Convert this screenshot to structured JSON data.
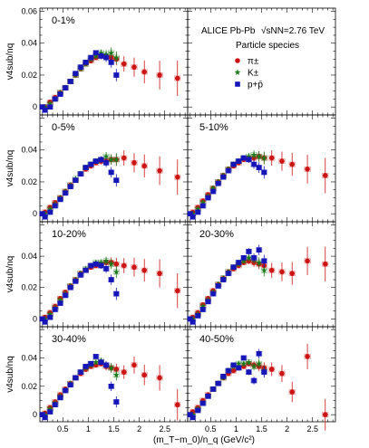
{
  "chart_data": {
    "type": "scatter",
    "layout": "4 rows x 2 columns of panels with shared axes",
    "x_axis": {
      "label": "(m_T−m_0)/n_q (GeV/c²)",
      "range": [
        0.05,
        2.95
      ],
      "ticks": [
        0.5,
        1,
        1.5,
        2,
        2.5
      ],
      "tick_labels": [
        "0.5",
        "1",
        "1.5",
        "2",
        "2.5"
      ]
    },
    "y_axis": {
      "label": "v4sub/nq",
      "range": [
        -0.005,
        0.062
      ],
      "ticks": [
        0,
        0.02,
        0.04,
        0.06
      ],
      "tick_labels": [
        "0",
        "0.02",
        "0.04",
        "0.06"
      ]
    },
    "info": {
      "experiment": "ALICE Pb-Pb",
      "energy": "√sNN=2.76 TeV",
      "legend_title": "Particle species",
      "legend_placement": "top-right panel"
    },
    "species": [
      {
        "key": "pion",
        "label": "π±",
        "marker": "circle",
        "color": "#cc1414"
      },
      {
        "key": "kaon",
        "label": "K±",
        "marker": "star",
        "color": "#1a7a1a"
      },
      {
        "key": "proton",
        "label": "p+p̄",
        "marker": "square",
        "color": "#1515b8"
      }
    ],
    "panels": [
      {
        "centrality": "0-1%",
        "pion": {
          "x": [
            0.15,
            0.25,
            0.35,
            0.45,
            0.55,
            0.65,
            0.75,
            0.85,
            0.95,
            1.05,
            1.15,
            1.25,
            1.35,
            1.45,
            1.55,
            1.7,
            1.9,
            2.1,
            2.4,
            2.75
          ],
          "y": [
            0.0,
            0.003,
            0.006,
            0.009,
            0.012,
            0.016,
            0.02,
            0.024,
            0.027,
            0.029,
            0.031,
            0.032,
            0.032,
            0.031,
            0.03,
            0.027,
            0.025,
            0.022,
            0.02,
            0.018
          ]
        },
        "kaon": {
          "x": [
            0.15,
            0.25,
            0.35,
            0.45,
            0.55,
            0.65,
            0.75,
            0.85,
            0.95,
            1.05,
            1.15,
            1.25,
            1.35,
            1.45,
            1.55
          ],
          "y": [
            0.0,
            0.002,
            0.005,
            0.009,
            0.012,
            0.016,
            0.02,
            0.024,
            0.027,
            0.03,
            0.032,
            0.034,
            0.033,
            0.034,
            0.031
          ]
        },
        "proton": {
          "x": [
            0.1,
            0.15,
            0.25,
            0.35,
            0.45,
            0.55,
            0.65,
            0.75,
            0.85,
            0.95,
            1.05,
            1.15,
            1.25,
            1.35,
            1.45,
            1.55
          ],
          "y": [
            0.0,
            -0.002,
            0.0,
            0.005,
            0.008,
            0.012,
            0.016,
            0.021,
            0.025,
            0.028,
            0.031,
            0.034,
            0.032,
            0.031,
            0.028,
            0.02
          ]
        }
      },
      {
        "centrality": "0-5%",
        "pion": {
          "x": [
            0.15,
            0.25,
            0.35,
            0.45,
            0.55,
            0.65,
            0.75,
            0.85,
            0.95,
            1.05,
            1.15,
            1.25,
            1.35,
            1.45,
            1.55,
            1.7,
            1.9,
            2.1,
            2.4,
            2.75
          ],
          "y": [
            0.001,
            0.004,
            0.007,
            0.01,
            0.014,
            0.018,
            0.021,
            0.025,
            0.028,
            0.03,
            0.032,
            0.033,
            0.033,
            0.034,
            0.034,
            0.035,
            0.032,
            0.03,
            0.027,
            0.023
          ]
        },
        "kaon": {
          "x": [
            0.15,
            0.25,
            0.35,
            0.45,
            0.55,
            0.65,
            0.75,
            0.85,
            0.95,
            1.05,
            1.15,
            1.25,
            1.35,
            1.45,
            1.55
          ],
          "y": [
            0.0,
            0.003,
            0.006,
            0.01,
            0.014,
            0.018,
            0.022,
            0.025,
            0.029,
            0.031,
            0.033,
            0.034,
            0.036,
            0.034,
            0.034
          ]
        },
        "proton": {
          "x": [
            0.1,
            0.15,
            0.25,
            0.35,
            0.45,
            0.55,
            0.65,
            0.75,
            0.85,
            0.95,
            1.05,
            1.15,
            1.25,
            1.35,
            1.45,
            1.55
          ],
          "y": [
            0.0,
            -0.002,
            0.001,
            0.005,
            0.009,
            0.013,
            0.017,
            0.021,
            0.025,
            0.029,
            0.031,
            0.033,
            0.034,
            0.032,
            0.026,
            0.021
          ]
        }
      },
      {
        "centrality": "5-10%",
        "pion": {
          "x": [
            0.15,
            0.25,
            0.35,
            0.45,
            0.55,
            0.65,
            0.75,
            0.85,
            0.95,
            1.05,
            1.15,
            1.25,
            1.35,
            1.45,
            1.55,
            1.7,
            1.9,
            2.1,
            2.4,
            2.75
          ],
          "y": [
            0.001,
            0.004,
            0.008,
            0.012,
            0.016,
            0.02,
            0.024,
            0.028,
            0.03,
            0.032,
            0.034,
            0.035,
            0.035,
            0.036,
            0.035,
            0.035,
            0.033,
            0.031,
            0.028,
            0.024
          ]
        },
        "kaon": {
          "x": [
            0.15,
            0.25,
            0.35,
            0.45,
            0.55,
            0.65,
            0.75,
            0.85,
            0.95,
            1.05,
            1.15,
            1.25,
            1.35,
            1.45,
            1.55
          ],
          "y": [
            0.0,
            0.003,
            0.007,
            0.011,
            0.016,
            0.02,
            0.024,
            0.028,
            0.031,
            0.033,
            0.035,
            0.036,
            0.037,
            0.036,
            0.035
          ]
        },
        "proton": {
          "x": [
            0.1,
            0.15,
            0.25,
            0.35,
            0.45,
            0.55,
            0.65,
            0.75,
            0.85,
            0.95,
            1.05,
            1.15,
            1.25,
            1.35,
            1.45,
            1.55
          ],
          "y": [
            0.0,
            -0.002,
            0.001,
            0.005,
            0.01,
            0.014,
            0.019,
            0.023,
            0.027,
            0.031,
            0.033,
            0.035,
            0.034,
            0.031,
            0.029,
            0.026
          ]
        }
      },
      {
        "centrality": "10-20%",
        "pion": {
          "x": [
            0.15,
            0.25,
            0.35,
            0.45,
            0.55,
            0.65,
            0.75,
            0.85,
            0.95,
            1.05,
            1.15,
            1.25,
            1.35,
            1.45,
            1.55,
            1.7,
            1.9,
            2.1,
            2.4,
            2.75
          ],
          "y": [
            0.001,
            0.004,
            0.008,
            0.013,
            0.017,
            0.021,
            0.025,
            0.029,
            0.031,
            0.033,
            0.034,
            0.035,
            0.036,
            0.036,
            0.035,
            0.034,
            0.033,
            0.031,
            0.029,
            0.018
          ]
        },
        "kaon": {
          "x": [
            0.15,
            0.25,
            0.35,
            0.45,
            0.55,
            0.65,
            0.75,
            0.85,
            0.95,
            1.05,
            1.15,
            1.25,
            1.35,
            1.45,
            1.55
          ],
          "y": [
            0.0,
            0.003,
            0.007,
            0.012,
            0.016,
            0.021,
            0.025,
            0.029,
            0.032,
            0.034,
            0.036,
            0.036,
            0.037,
            0.035,
            0.03
          ]
        },
        "proton": {
          "x": [
            0.1,
            0.15,
            0.25,
            0.35,
            0.45,
            0.55,
            0.65,
            0.75,
            0.85,
            0.95,
            1.05,
            1.15,
            1.25,
            1.35,
            1.45,
            1.55
          ],
          "y": [
            0.0,
            -0.002,
            0.001,
            0.006,
            0.01,
            0.015,
            0.02,
            0.024,
            0.028,
            0.031,
            0.034,
            0.035,
            0.034,
            0.032,
            0.025,
            0.016
          ]
        }
      },
      {
        "centrality": "20-30%",
        "pion": {
          "x": [
            0.15,
            0.25,
            0.35,
            0.45,
            0.55,
            0.65,
            0.75,
            0.85,
            0.95,
            1.05,
            1.15,
            1.25,
            1.35,
            1.45,
            1.55,
            1.7,
            1.9,
            2.1,
            2.4,
            2.75
          ],
          "y": [
            0.001,
            0.004,
            0.009,
            0.013,
            0.018,
            0.022,
            0.026,
            0.03,
            0.032,
            0.034,
            0.036,
            0.037,
            0.036,
            0.035,
            0.034,
            0.031,
            0.03,
            0.029,
            0.037,
            0.035
          ]
        },
        "kaon": {
          "x": [
            0.15,
            0.25,
            0.35,
            0.45,
            0.55,
            0.65,
            0.75,
            0.85,
            0.95,
            1.05,
            1.15,
            1.25,
            1.35,
            1.45,
            1.55
          ],
          "y": [
            0.0,
            0.003,
            0.008,
            0.012,
            0.017,
            0.022,
            0.026,
            0.03,
            0.033,
            0.035,
            0.037,
            0.039,
            0.038,
            0.036,
            0.031
          ]
        },
        "proton": {
          "x": [
            0.1,
            0.15,
            0.25,
            0.35,
            0.45,
            0.55,
            0.65,
            0.75,
            0.85,
            0.95,
            1.05,
            1.15,
            1.25,
            1.35,
            1.45,
            1.55
          ],
          "y": [
            0.0,
            -0.002,
            0.002,
            0.006,
            0.011,
            0.016,
            0.021,
            0.025,
            0.029,
            0.033,
            0.036,
            0.039,
            0.043,
            0.039,
            0.044,
            0.037
          ]
        }
      },
      {
        "centrality": "30-40%",
        "pion": {
          "x": [
            0.15,
            0.25,
            0.35,
            0.45,
            0.55,
            0.65,
            0.75,
            0.85,
            0.95,
            1.05,
            1.15,
            1.25,
            1.35,
            1.45,
            1.55,
            1.7,
            1.9,
            2.1,
            2.4,
            2.75
          ],
          "y": [
            0.001,
            0.005,
            0.009,
            0.014,
            0.018,
            0.022,
            0.026,
            0.029,
            0.032,
            0.034,
            0.035,
            0.036,
            0.034,
            0.033,
            0.032,
            0.03,
            0.035,
            0.028,
            0.026,
            0.007
          ]
        },
        "kaon": {
          "x": [
            0.15,
            0.25,
            0.35,
            0.45,
            0.55,
            0.65,
            0.75,
            0.85,
            0.95,
            1.05,
            1.15,
            1.25,
            1.35,
            1.45,
            1.55
          ],
          "y": [
            0.0,
            0.004,
            0.008,
            0.013,
            0.017,
            0.022,
            0.026,
            0.03,
            0.033,
            0.035,
            0.037,
            0.038,
            0.035,
            0.033,
            0.028
          ]
        },
        "proton": {
          "x": [
            0.1,
            0.15,
            0.25,
            0.35,
            0.45,
            0.55,
            0.65,
            0.75,
            0.85,
            0.95,
            1.05,
            1.15,
            1.25,
            1.35,
            1.45,
            1.55
          ],
          "y": [
            0.0,
            -0.002,
            0.002,
            0.007,
            0.012,
            0.017,
            0.021,
            0.026,
            0.03,
            0.034,
            0.036,
            0.041,
            0.037,
            0.035,
            0.02,
            0.009
          ]
        }
      },
      {
        "centrality": "40-50%",
        "pion": {
          "x": [
            0.15,
            0.25,
            0.35,
            0.45,
            0.55,
            0.65,
            0.75,
            0.85,
            0.95,
            1.05,
            1.15,
            1.25,
            1.35,
            1.45,
            1.55,
            1.7,
            1.9,
            2.1,
            2.4,
            2.75
          ],
          "y": [
            0.002,
            0.005,
            0.01,
            0.014,
            0.018,
            0.022,
            0.026,
            0.029,
            0.031,
            0.033,
            0.034,
            0.036,
            0.035,
            0.034,
            0.033,
            0.032,
            0.029,
            0.016,
            0.041,
            0.0
          ]
        },
        "kaon": {
          "x": [
            0.15,
            0.25,
            0.35,
            0.45,
            0.55,
            0.65,
            0.75,
            0.85,
            0.95,
            1.05,
            1.15,
            1.25,
            1.35,
            1.45,
            1.55
          ],
          "y": [
            0.0,
            0.004,
            0.008,
            0.013,
            0.018,
            0.022,
            0.026,
            0.031,
            0.034,
            0.036,
            0.036,
            0.037,
            0.034,
            0.036,
            0.031
          ]
        },
        "proton": {
          "x": [
            0.1,
            0.15,
            0.25,
            0.35,
            0.45,
            0.55,
            0.65,
            0.75,
            0.85,
            0.95,
            1.05,
            1.15,
            1.25,
            1.35,
            1.45,
            1.55
          ],
          "y": [
            0.0,
            -0.002,
            0.003,
            0.008,
            0.013,
            0.018,
            0.022,
            0.027,
            0.031,
            0.035,
            0.033,
            0.04,
            0.03,
            0.024,
            0.043,
            0.03
          ]
        }
      }
    ]
  }
}
